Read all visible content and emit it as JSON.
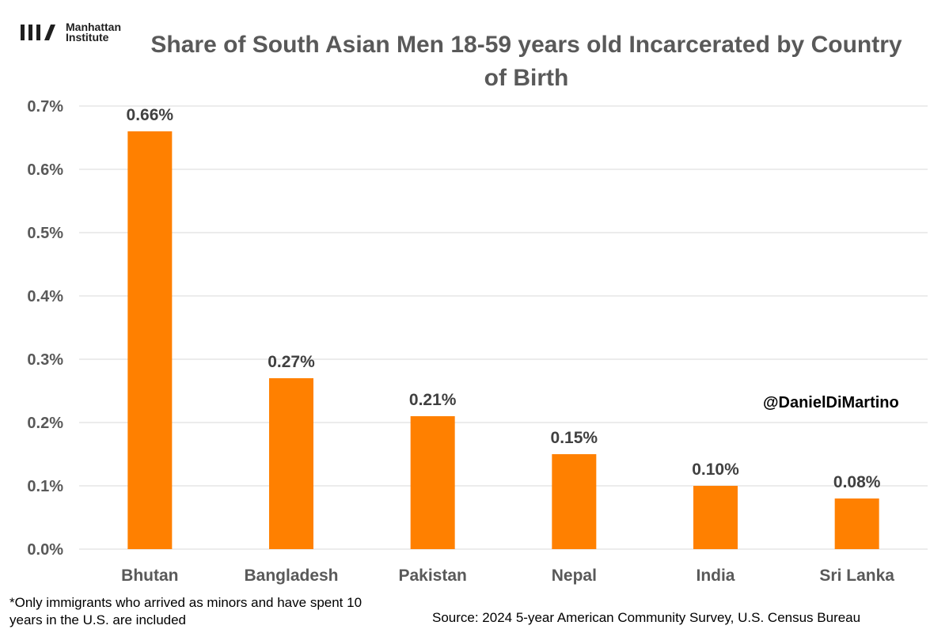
{
  "logo": {
    "line1": "Manhattan",
    "line2": "Institute"
  },
  "handle": "@DanielDiMartino",
  "footnote": "*Only immigrants who arrived as minors and have spent 10 years in the U.S. are included",
  "source": "Source: 2024 5-year American Community Survey, U.S. Census Bureau",
  "colors": {
    "bar": "#FF8000",
    "grid": "#D9D9D9",
    "text": "#595959",
    "label": "#404040"
  },
  "chart_data": {
    "type": "bar",
    "title": "Share of South Asian Men 18-59 years old Incarcerated by Country of Birth",
    "xlabel": "",
    "ylabel": "",
    "categories": [
      "Bhutan",
      "Bangladesh",
      "Pakistan",
      "Nepal",
      "India",
      "Sri Lanka"
    ],
    "values": [
      0.66,
      0.27,
      0.21,
      0.15,
      0.1,
      0.08
    ],
    "data_labels": [
      "0.66%",
      "0.27%",
      "0.21%",
      "0.15%",
      "0.10%",
      "0.08%"
    ],
    "ylim": [
      0,
      0.7
    ],
    "yticks": [
      "0.0%",
      "0.1%",
      "0.2%",
      "0.3%",
      "0.4%",
      "0.5%",
      "0.6%",
      "0.7%"
    ],
    "grid": true,
    "legend": "none"
  }
}
